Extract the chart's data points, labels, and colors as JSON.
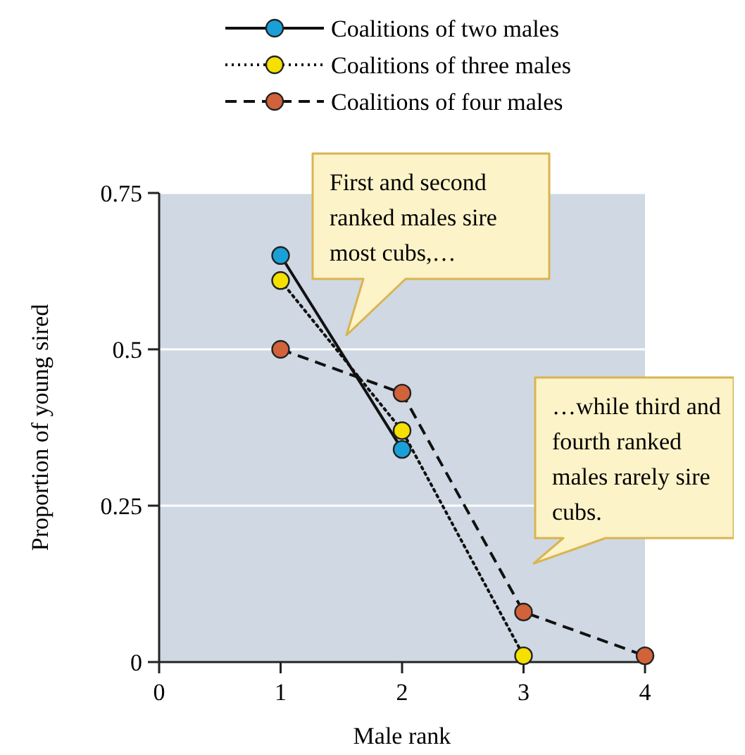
{
  "chart_data": {
    "type": "line",
    "xlabel": "Male rank",
    "ylabel": "Proportion of young sired",
    "x": [
      1,
      2,
      3,
      4
    ],
    "series": [
      {
        "name": "Coalitions of two males",
        "color": "#1aa0d8",
        "values": [
          0.65,
          0.34,
          null,
          null
        ],
        "line_style": "solid"
      },
      {
        "name": "Coalitions of three males",
        "color": "#f5e000",
        "values": [
          0.61,
          0.37,
          0.01,
          null
        ],
        "line_style": "dotted"
      },
      {
        "name": "Coalitions of four males",
        "color": "#d2623a",
        "values": [
          0.5,
          0.43,
          0.08,
          0.01
        ],
        "line_style": "dashed"
      }
    ],
    "xlim": [
      0,
      4
    ],
    "xticks": [
      0,
      1,
      2,
      3,
      4
    ],
    "ylim": [
      0,
      0.75
    ],
    "yticks": [
      0,
      {
        "value": 0.25,
        "label": "0.25"
      },
      {
        "value": 0.5,
        "label": "0.5"
      },
      {
        "value": 0.75,
        "label": "0.75"
      }
    ],
    "grid": "y",
    "legend": "top",
    "marker": "circle",
    "annotations": [
      "First and second ranked males sire most cubs,…",
      "…while third and fourth ranked males rarely sire cubs."
    ]
  }
}
